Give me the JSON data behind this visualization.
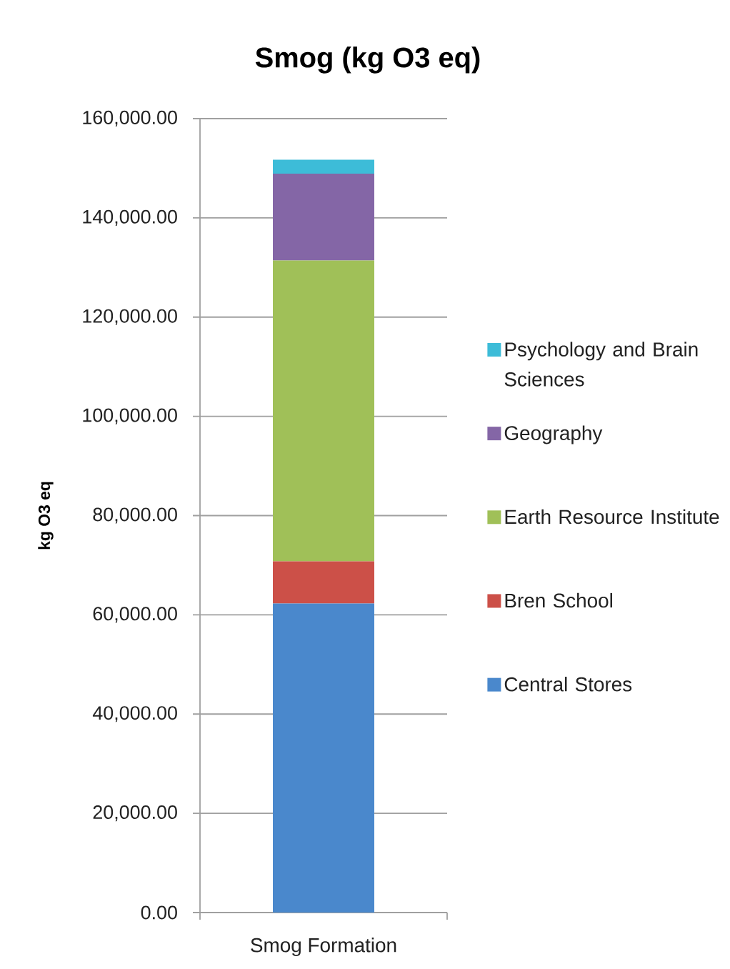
{
  "chart_data": {
    "type": "bar",
    "title": "Smog (kg O3 eq)",
    "ylabel": "kg O3 eq",
    "categories": [
      "Smog Formation"
    ],
    "stacked": true,
    "series": [
      {
        "name": "Central Stores",
        "color": "#4a88cc",
        "values": [
          62300
        ]
      },
      {
        "name": "Bren School",
        "color": "#cc5048",
        "values": [
          8500
        ]
      },
      {
        "name": "Earth Resource Institute",
        "color": "#a0c058",
        "values": [
          60600
        ]
      },
      {
        "name": "Geography",
        "color": "#8466a6",
        "values": [
          17500
        ]
      },
      {
        "name": "Psychology and Brain Sciences",
        "color": "#3dbcd8",
        "values": [
          2800
        ]
      }
    ],
    "ylim": [
      0,
      160000
    ],
    "yticks": [
      {
        "value": 0,
        "label": "0.00"
      },
      {
        "value": 20000,
        "label": "20,000.00"
      },
      {
        "value": 40000,
        "label": "40,000.00"
      },
      {
        "value": 60000,
        "label": "60,000.00"
      },
      {
        "value": 80000,
        "label": "80,000.00"
      },
      {
        "value": 100000,
        "label": "100,000.00"
      },
      {
        "value": 120000,
        "label": "120,000.00"
      },
      {
        "value": 140000,
        "label": "140,000.00"
      },
      {
        "value": 160000,
        "label": "160,000.00"
      }
    ],
    "grid": "y",
    "legend": "right"
  }
}
